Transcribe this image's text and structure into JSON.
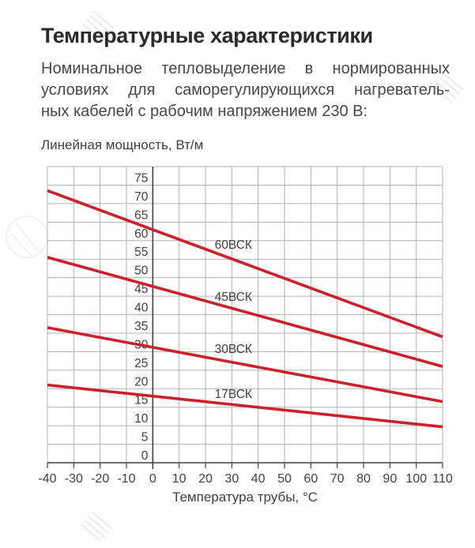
{
  "header": {
    "title": "Температурные характеристики",
    "description_lines": [
      "Номинальное тепловыделение в нормированных",
      "условиях для саморегулирующихся нагреватель-",
      "ных кабелей с рабочим напряжением 230 В:"
    ]
  },
  "chart_data": {
    "type": "line",
    "title": "",
    "xlabel": "Температура трубы, °С",
    "ylabel": "Линейная мощность, Вт/м",
    "xlim": [
      -40,
      110
    ],
    "ylim": [
      0,
      80
    ],
    "x_ticks": [
      -40,
      -30,
      -20,
      -10,
      0,
      10,
      20,
      30,
      40,
      50,
      60,
      70,
      80,
      90,
      100,
      110
    ],
    "y_ticks": [
      0,
      5,
      10,
      15,
      20,
      25,
      30,
      35,
      40,
      45,
      50,
      55,
      60,
      65,
      70,
      75
    ],
    "y_grid_step": 5,
    "x_grid_step": 10,
    "grid": true,
    "legend_position": "inline-labels",
    "colors": {
      "line": "#cc212b",
      "grid": "#b1b1b1",
      "axis": "#414141",
      "tick_text": "#3f3f3f"
    },
    "series": [
      {
        "name": "60ВСК",
        "x": [
          -40,
          110
        ],
        "values": [
          73.5,
          34.0
        ],
        "label_pos": [
          23.5,
          57.8
        ]
      },
      {
        "name": "45ВСК",
        "x": [
          -40,
          110
        ],
        "values": [
          55.5,
          26.0
        ],
        "label_pos": [
          23.5,
          43.7
        ]
      },
      {
        "name": "30ВСК",
        "x": [
          -40,
          110
        ],
        "values": [
          36.5,
          16.5
        ],
        "label_pos": [
          23.5,
          29.7
        ]
      },
      {
        "name": "17ВСК",
        "x": [
          -40,
          110
        ],
        "values": [
          21.0,
          9.7
        ],
        "label_pos": [
          23.5,
          17.5
        ]
      }
    ]
  }
}
